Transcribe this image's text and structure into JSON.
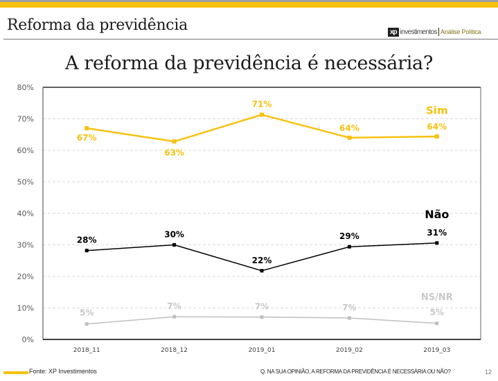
{
  "header": {
    "page_title": "Reforma da previdência",
    "logo": {
      "mark": "xp",
      "brand": "investimentos",
      "section": "Análise Política"
    }
  },
  "colors": {
    "accent": "#f7c10f",
    "sim": "#f7c10f",
    "nao": "#000000",
    "nsnr": "#bfbfbf"
  },
  "chart_data": {
    "type": "line",
    "title": "A reforma da previdência é necessária?",
    "xlabel": "",
    "ylabel": "",
    "categories": [
      "2018_11",
      "2018_12",
      "2019_01",
      "2019_02",
      "2019_03"
    ],
    "ylim": [
      0,
      80
    ],
    "yticks": [
      0,
      10,
      20,
      30,
      40,
      50,
      60,
      70,
      80
    ],
    "ytick_labels": [
      "0%",
      "10%",
      "20%",
      "30%",
      "40%",
      "50%",
      "60%",
      "70%",
      "80%"
    ],
    "grid": true,
    "legend": "inline-right",
    "series": [
      {
        "name": "Sim",
        "values": [
          67,
          62.8,
          71.3,
          64,
          64.4
        ],
        "labels": [
          "67%",
          "63%",
          "71%",
          "64%",
          "64%"
        ],
        "color": "#f7c10f"
      },
      {
        "name": "Não",
        "values": [
          28.2,
          30,
          21.8,
          29.4,
          30.6
        ],
        "labels": [
          "28%",
          "30%",
          "22%",
          "29%",
          "31%"
        ],
        "color": "#000000"
      },
      {
        "name": "NS/NR",
        "values": [
          4.9,
          7.2,
          7.1,
          6.8,
          5.1
        ],
        "labels": [
          "5%",
          "7%",
          "7%",
          "7%",
          "5%"
        ],
        "color": "#bfbfbf"
      }
    ]
  },
  "footer": {
    "source": "Fonte: XP Investimentos",
    "question": "Q. NA SUA OPINIÃO, A REFORMA DA PREVIDÊNCIA É NECESSÁRIA OU NÃO?",
    "page_number": "12"
  }
}
